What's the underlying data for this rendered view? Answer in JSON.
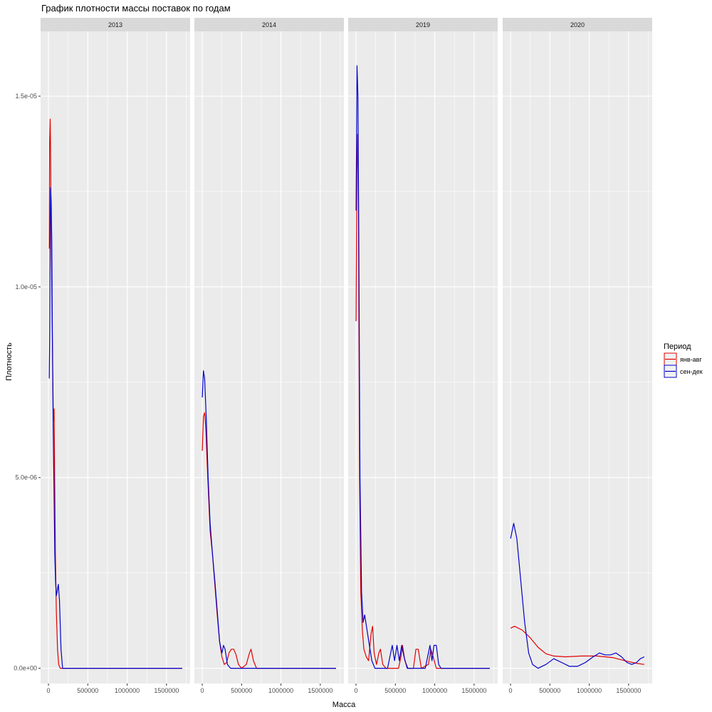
{
  "chart_data": {
    "type": "line",
    "title": "График плотности массы поставок по годам",
    "xlabel": "Масса",
    "ylabel": "Плотность",
    "xlim": [
      -100000,
      1800000
    ],
    "ylim": [
      -4e-07,
      1.67e-05
    ],
    "x_ticks": [
      0,
      500000,
      1000000,
      1500000
    ],
    "x_tick_labels": [
      "0",
      "500000",
      "1000000",
      "1500000"
    ],
    "y_ticks": [
      0,
      5e-06,
      1e-05,
      1.5e-05
    ],
    "y_tick_labels": [
      "0.0e+00",
      "5.0e-06",
      "1.0e-05",
      "1.5e-05"
    ],
    "grid": true,
    "legend": {
      "title": "Период",
      "position": "right",
      "entries": [
        {
          "label": "янв-авг",
          "color": "#e00000"
        },
        {
          "label": "сен-дек",
          "color": "#0000cc"
        }
      ]
    },
    "panels": [
      {
        "label": "2013",
        "series": [
          {
            "name": "янв-авг",
            "color": "#e00000",
            "points": [
              [
                10000,
                1.1e-05
              ],
              [
                15000,
                1.38e-05
              ],
              [
                22000,
                1.44e-05
              ],
              [
                28000,
                1.34e-05
              ],
              [
                35000,
                1.13e-05
              ],
              [
                45000,
                9.5e-06
              ],
              [
                55000,
                7.8e-06
              ],
              [
                62000,
                6.5e-06
              ],
              [
                72000,
                6.8e-06
              ],
              [
                78000,
                5.2e-06
              ],
              [
                88000,
                3e-06
              ],
              [
                100000,
                1.5e-06
              ],
              [
                115000,
                5e-07
              ],
              [
                130000,
                1e-07
              ],
              [
                150000,
                0
              ],
              [
                200000,
                0
              ],
              [
                500000,
                0
              ],
              [
                1000000,
                0
              ],
              [
                1500000,
                0
              ],
              [
                1700000,
                0
              ]
            ]
          },
          {
            "name": "сен-дек",
            "color": "#0000cc",
            "points": [
              [
                10000,
                7.6e-06
              ],
              [
                16000,
                8.7e-06
              ],
              [
                22000,
                1.16e-05
              ],
              [
                28000,
                1.26e-05
              ],
              [
                35000,
                1.22e-05
              ],
              [
                42000,
                1.12e-05
              ],
              [
                50000,
                8.6e-06
              ],
              [
                60000,
                6.3e-06
              ],
              [
                70000,
                4.8e-06
              ],
              [
                80000,
                3e-06
              ],
              [
                90000,
                2.3e-06
              ],
              [
                100000,
                1.9e-06
              ],
              [
                110000,
                2e-06
              ],
              [
                125000,
                2.2e-06
              ],
              [
                140000,
                1.8e-06
              ],
              [
                160000,
                5e-07
              ],
              [
                180000,
                0
              ],
              [
                300000,
                0
              ],
              [
                1000000,
                0
              ],
              [
                1700000,
                0
              ]
            ]
          }
        ]
      },
      {
        "label": "2014",
        "series": [
          {
            "name": "янв-авг",
            "color": "#e00000",
            "points": [
              [
                0,
                5.7e-06
              ],
              [
                15000,
                6.6e-06
              ],
              [
                30000,
                6.7e-06
              ],
              [
                45000,
                6.3e-06
              ],
              [
                70000,
                5e-06
              ],
              [
                100000,
                3.6e-06
              ],
              [
                130000,
                3e-06
              ],
              [
                160000,
                2.2e-06
              ],
              [
                190000,
                1.4e-06
              ],
              [
                220000,
                7e-07
              ],
              [
                250000,
                3e-07
              ],
              [
                280000,
                1e-07
              ],
              [
                310000,
                1.5e-07
              ],
              [
                340000,
                4e-07
              ],
              [
                370000,
                5e-07
              ],
              [
                400000,
                5e-07
              ],
              [
                430000,
                3.5e-07
              ],
              [
                460000,
                1e-07
              ],
              [
                500000,
                0
              ],
              [
                560000,
                1e-07
              ],
              [
                600000,
                4e-07
              ],
              [
                620000,
                5e-07
              ],
              [
                650000,
                2e-07
              ],
              [
                690000,
                0
              ],
              [
                1000000,
                0
              ],
              [
                1700000,
                0
              ]
            ]
          },
          {
            "name": "сен-дек",
            "color": "#0000cc",
            "points": [
              [
                0,
                7.1e-06
              ],
              [
                15000,
                7.8e-06
              ],
              [
                30000,
                7.6e-06
              ],
              [
                50000,
                6.6e-06
              ],
              [
                75000,
                5e-06
              ],
              [
                100000,
                3.8e-06
              ],
              [
                130000,
                3e-06
              ],
              [
                160000,
                2.3e-06
              ],
              [
                190000,
                1.5e-06
              ],
              [
                220000,
                7e-07
              ],
              [
                250000,
                4e-07
              ],
              [
                270000,
                6e-07
              ],
              [
                290000,
                5e-07
              ],
              [
                320000,
                1e-07
              ],
              [
                360000,
                0
              ],
              [
                500000,
                0
              ],
              [
                1000000,
                0
              ],
              [
                1700000,
                0
              ]
            ]
          }
        ]
      },
      {
        "label": "2019",
        "series": [
          {
            "name": "янв-авг",
            "color": "#e00000",
            "points": [
              [
                0,
                9.1e-06
              ],
              [
                10000,
                1.3e-05
              ],
              [
                20000,
                1.4e-05
              ],
              [
                32000,
                1.15e-05
              ],
              [
                45000,
                5e-06
              ],
              [
                60000,
                2e-06
              ],
              [
                80000,
                1e-06
              ],
              [
                100000,
                5e-07
              ],
              [
                130000,
                3e-07
              ],
              [
                160000,
                2e-07
              ],
              [
                190000,
                9e-07
              ],
              [
                210000,
                1.1e-06
              ],
              [
                230000,
                4e-07
              ],
              [
                260000,
                1e-07
              ],
              [
                290000,
                4e-07
              ],
              [
                310000,
                5e-07
              ],
              [
                340000,
                1e-07
              ],
              [
                380000,
                0
              ],
              [
                540000,
                0
              ],
              [
                570000,
                3e-07
              ],
              [
                590000,
                6e-07
              ],
              [
                620000,
                2e-07
              ],
              [
                660000,
                0
              ],
              [
                730000,
                0
              ],
              [
                760000,
                5e-07
              ],
              [
                790000,
                5e-07
              ],
              [
                830000,
                0
              ],
              [
                920000,
                1e-07
              ],
              [
                950000,
                5e-07
              ],
              [
                980000,
                3e-07
              ],
              [
                1020000,
                0
              ],
              [
                1700000,
                0
              ]
            ]
          },
          {
            "name": "сен-дек",
            "color": "#0000cc",
            "points": [
              [
                0,
                1.2e-05
              ],
              [
                12000,
                1.58e-05
              ],
              [
                24000,
                1.5e-05
              ],
              [
                36000,
                1.1e-05
              ],
              [
                50000,
                5e-06
              ],
              [
                70000,
                2e-06
              ],
              [
                90000,
                1.2e-06
              ],
              [
                110000,
                1.4e-06
              ],
              [
                140000,
                1e-06
              ],
              [
                170000,
                6e-07
              ],
              [
                200000,
                2e-07
              ],
              [
                240000,
                0
              ],
              [
                400000,
                0
              ],
              [
                430000,
                3e-07
              ],
              [
                460000,
                6e-07
              ],
              [
                490000,
                2e-07
              ],
              [
                520000,
                6e-07
              ],
              [
                550000,
                2e-07
              ],
              [
                580000,
                6e-07
              ],
              [
                610000,
                3e-07
              ],
              [
                650000,
                0
              ],
              [
                880000,
                0
              ],
              [
                910000,
                3e-07
              ],
              [
                940000,
                6e-07
              ],
              [
                965000,
                2e-07
              ],
              [
                990000,
                6e-07
              ],
              [
                1020000,
                6e-07
              ],
              [
                1050000,
                1e-07
              ],
              [
                1080000,
                0
              ],
              [
                1700000,
                0
              ]
            ]
          }
        ]
      },
      {
        "label": "2020",
        "series": [
          {
            "name": "янв-авг",
            "color": "#e00000",
            "points": [
              [
                0,
                1.05e-06
              ],
              [
                50000,
                1.1e-06
              ],
              [
                150000,
                1e-06
              ],
              [
                250000,
                8e-07
              ],
              [
                350000,
                5.5e-07
              ],
              [
                450000,
                3.8e-07
              ],
              [
                550000,
                3.2e-07
              ],
              [
                700000,
                3e-07
              ],
              [
                900000,
                3.2e-07
              ],
              [
                1100000,
                3.2e-07
              ],
              [
                1300000,
                2.8e-07
              ],
              [
                1450000,
                2e-07
              ],
              [
                1600000,
                1.3e-07
              ],
              [
                1700000,
                1e-07
              ]
            ]
          },
          {
            "name": "сен-дек",
            "color": "#0000cc",
            "points": [
              [
                0,
                3.4e-06
              ],
              [
                40000,
                3.8e-06
              ],
              [
                80000,
                3.4e-06
              ],
              [
                130000,
                2.3e-06
              ],
              [
                180000,
                1.2e-06
              ],
              [
                230000,
                4e-07
              ],
              [
                280000,
                1e-07
              ],
              [
                350000,
                0
              ],
              [
                450000,
                1e-07
              ],
              [
                550000,
                2.5e-07
              ],
              [
                650000,
                1.5e-07
              ],
              [
                750000,
                5e-08
              ],
              [
                850000,
                5e-08
              ],
              [
                950000,
                1.5e-07
              ],
              [
                1050000,
                3e-07
              ],
              [
                1130000,
                4e-07
              ],
              [
                1200000,
                3.5e-07
              ],
              [
                1270000,
                3.5e-07
              ],
              [
                1340000,
                4e-07
              ],
              [
                1410000,
                3e-07
              ],
              [
                1480000,
                1.5e-07
              ],
              [
                1540000,
                1e-07
              ],
              [
                1600000,
                1.5e-07
              ],
              [
                1650000,
                2.5e-07
              ],
              [
                1700000,
                3e-07
              ]
            ]
          }
        ]
      }
    ]
  }
}
